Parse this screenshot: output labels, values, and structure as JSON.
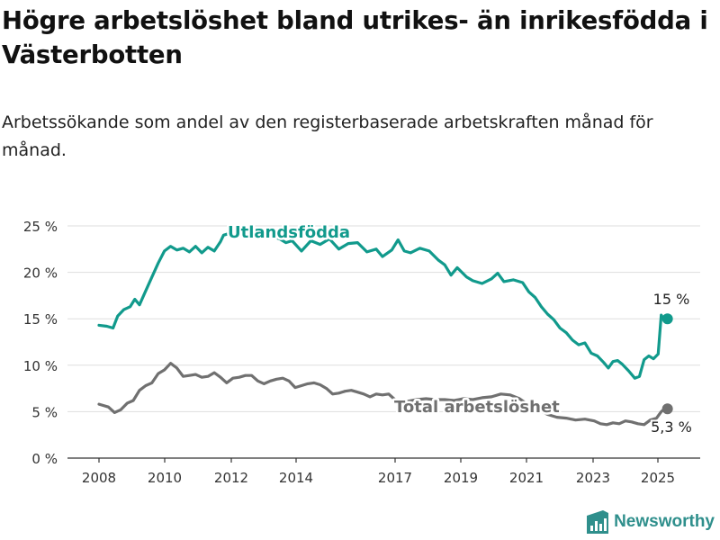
{
  "title": "Högre arbetslöshet bland utrikes- än inrikesfödda i Västerbotten",
  "subtitle": "Arbetssökande som andel av den registerbaserade arbetskraften månad för månad.",
  "brand": "Newsworthy",
  "colors": {
    "foreign": "#119a8c",
    "total": "#707070",
    "grid": "#dedede",
    "axis": "#333333"
  },
  "chart_data": {
    "type": "line",
    "x_ticks": [
      "2008",
      "2010",
      "2012",
      "2014",
      "2017",
      "2019",
      "2021",
      "2023",
      "2025"
    ],
    "y_ticks": [
      "0 %",
      "5 %",
      "10 %",
      "15 %",
      "20 %",
      "25 %"
    ],
    "ylim": [
      0,
      25
    ],
    "grid": true,
    "series": [
      {
        "name": "Utlandsfödda",
        "color": "#119a8c",
        "end_label": "15 %",
        "points": [
          [
            2008.0,
            14.3
          ],
          [
            2008.25,
            14.2
          ],
          [
            2008.45,
            14.0
          ],
          [
            2008.6,
            15.3
          ],
          [
            2008.8,
            16.0
          ],
          [
            2009.0,
            16.3
          ],
          [
            2009.15,
            17.1
          ],
          [
            2009.3,
            16.5
          ],
          [
            2009.5,
            18.0
          ],
          [
            2009.7,
            19.5
          ],
          [
            2009.9,
            21.0
          ],
          [
            2010.1,
            22.3
          ],
          [
            2010.3,
            22.8
          ],
          [
            2010.5,
            22.4
          ],
          [
            2010.7,
            22.6
          ],
          [
            2010.9,
            22.2
          ],
          [
            2011.1,
            22.8
          ],
          [
            2011.3,
            22.1
          ],
          [
            2011.5,
            22.7
          ],
          [
            2011.7,
            22.3
          ],
          [
            2011.9,
            23.3
          ],
          [
            2012.0,
            24.0
          ],
          [
            2012.3,
            24.3
          ],
          [
            2012.6,
            24.4
          ],
          [
            2012.9,
            24.1
          ],
          [
            2013.2,
            24.3
          ],
          [
            2013.5,
            23.9
          ],
          [
            2013.8,
            23.6
          ],
          [
            2014.0,
            23.2
          ],
          [
            2014.2,
            23.4
          ],
          [
            2014.5,
            22.3
          ],
          [
            2014.8,
            23.4
          ],
          [
            2015.1,
            23.0
          ],
          [
            2015.4,
            23.6
          ],
          [
            2015.7,
            22.5
          ],
          [
            2016.0,
            23.1
          ],
          [
            2016.3,
            23.2
          ],
          [
            2016.6,
            22.2
          ],
          [
            2016.9,
            22.5
          ],
          [
            2017.1,
            21.7
          ],
          [
            2017.4,
            22.4
          ],
          [
            2017.6,
            23.5
          ],
          [
            2017.8,
            22.3
          ],
          [
            2018.0,
            22.1
          ],
          [
            2018.3,
            22.6
          ],
          [
            2018.6,
            22.3
          ],
          [
            2018.9,
            21.3
          ],
          [
            2019.1,
            20.8
          ],
          [
            2019.3,
            19.7
          ],
          [
            2019.5,
            20.5
          ],
          [
            2019.8,
            19.5
          ],
          [
            2020.0,
            19.1
          ],
          [
            2020.3,
            18.8
          ],
          [
            2020.6,
            19.3
          ],
          [
            2020.8,
            19.9
          ],
          [
            2021.0,
            19.0
          ],
          [
            2021.3,
            19.2
          ],
          [
            2021.6,
            18.9
          ],
          [
            2021.8,
            17.9
          ],
          [
            2022.0,
            17.3
          ],
          [
            2022.2,
            16.3
          ],
          [
            2022.4,
            15.5
          ],
          [
            2022.6,
            14.9
          ],
          [
            2022.8,
            14.0
          ],
          [
            2023.0,
            13.5
          ],
          [
            2023.2,
            12.7
          ],
          [
            2023.4,
            12.2
          ],
          [
            2023.6,
            12.4
          ],
          [
            2023.8,
            11.3
          ],
          [
            2024.0,
            11.0
          ],
          [
            2024.2,
            10.3
          ],
          [
            2024.35,
            9.7
          ],
          [
            2024.5,
            10.4
          ],
          [
            2024.65,
            10.5
          ],
          [
            2024.8,
            10.1
          ],
          [
            2025.0,
            9.4
          ],
          [
            2025.2,
            8.6
          ],
          [
            2025.35,
            8.8
          ],
          [
            2025.5,
            10.6
          ],
          [
            2025.65,
            11.0
          ],
          [
            2025.8,
            10.7
          ],
          [
            2025.95,
            11.2
          ],
          [
            2026.05,
            15.4
          ],
          [
            2026.12,
            15.0
          ],
          [
            2026.25,
            15.0
          ]
        ]
      },
      {
        "name": "Total arbetslöshet",
        "color": "#707070",
        "end_label": "5,3 %",
        "points": [
          [
            2008.0,
            5.8
          ],
          [
            2008.3,
            5.5
          ],
          [
            2008.5,
            4.9
          ],
          [
            2008.7,
            5.2
          ],
          [
            2008.9,
            5.9
          ],
          [
            2009.1,
            6.2
          ],
          [
            2009.3,
            7.3
          ],
          [
            2009.5,
            7.8
          ],
          [
            2009.7,
            8.1
          ],
          [
            2009.9,
            9.1
          ],
          [
            2010.1,
            9.5
          ],
          [
            2010.3,
            10.2
          ],
          [
            2010.5,
            9.7
          ],
          [
            2010.7,
            8.8
          ],
          [
            2010.9,
            8.9
          ],
          [
            2011.1,
            9.0
          ],
          [
            2011.3,
            8.7
          ],
          [
            2011.5,
            8.8
          ],
          [
            2011.7,
            9.2
          ],
          [
            2011.9,
            8.7
          ],
          [
            2012.1,
            8.1
          ],
          [
            2012.3,
            8.6
          ],
          [
            2012.5,
            8.7
          ],
          [
            2012.7,
            8.9
          ],
          [
            2012.9,
            8.9
          ],
          [
            2013.1,
            8.3
          ],
          [
            2013.3,
            8.0
          ],
          [
            2013.5,
            8.3
          ],
          [
            2013.7,
            8.5
          ],
          [
            2013.9,
            8.6
          ],
          [
            2014.1,
            8.3
          ],
          [
            2014.3,
            7.6
          ],
          [
            2014.5,
            7.8
          ],
          [
            2014.7,
            8.0
          ],
          [
            2014.9,
            8.1
          ],
          [
            2015.1,
            7.9
          ],
          [
            2015.3,
            7.5
          ],
          [
            2015.5,
            6.9
          ],
          [
            2015.7,
            7.0
          ],
          [
            2015.9,
            7.2
          ],
          [
            2016.1,
            7.3
          ],
          [
            2016.3,
            7.1
          ],
          [
            2016.5,
            6.9
          ],
          [
            2016.7,
            6.6
          ],
          [
            2016.9,
            6.9
          ],
          [
            2017.1,
            6.8
          ],
          [
            2017.3,
            6.9
          ],
          [
            2017.5,
            6.3
          ],
          [
            2017.7,
            5.9
          ],
          [
            2017.9,
            6.1
          ],
          [
            2018.2,
            6.3
          ],
          [
            2018.5,
            6.4
          ],
          [
            2018.8,
            6.3
          ],
          [
            2019.1,
            6.3
          ],
          [
            2019.4,
            6.2
          ],
          [
            2019.7,
            6.4
          ],
          [
            2020.0,
            6.3
          ],
          [
            2020.3,
            6.5
          ],
          [
            2020.6,
            6.6
          ],
          [
            2020.9,
            6.9
          ],
          [
            2021.2,
            6.8
          ],
          [
            2021.5,
            6.4
          ],
          [
            2021.8,
            5.7
          ],
          [
            2022.1,
            5.2
          ],
          [
            2022.4,
            4.7
          ],
          [
            2022.7,
            4.4
          ],
          [
            2023.0,
            4.3
          ],
          [
            2023.3,
            4.1
          ],
          [
            2023.6,
            4.2
          ],
          [
            2023.9,
            4.0
          ],
          [
            2024.1,
            3.7
          ],
          [
            2024.3,
            3.6
          ],
          [
            2024.5,
            3.8
          ],
          [
            2024.7,
            3.7
          ],
          [
            2024.9,
            4.0
          ],
          [
            2025.1,
            3.9
          ],
          [
            2025.3,
            3.7
          ],
          [
            2025.5,
            3.6
          ],
          [
            2025.7,
            4.1
          ],
          [
            2025.9,
            4.3
          ],
          [
            2026.05,
            5.0
          ],
          [
            2026.15,
            5.3
          ],
          [
            2026.25,
            5.3
          ]
        ]
      }
    ]
  }
}
